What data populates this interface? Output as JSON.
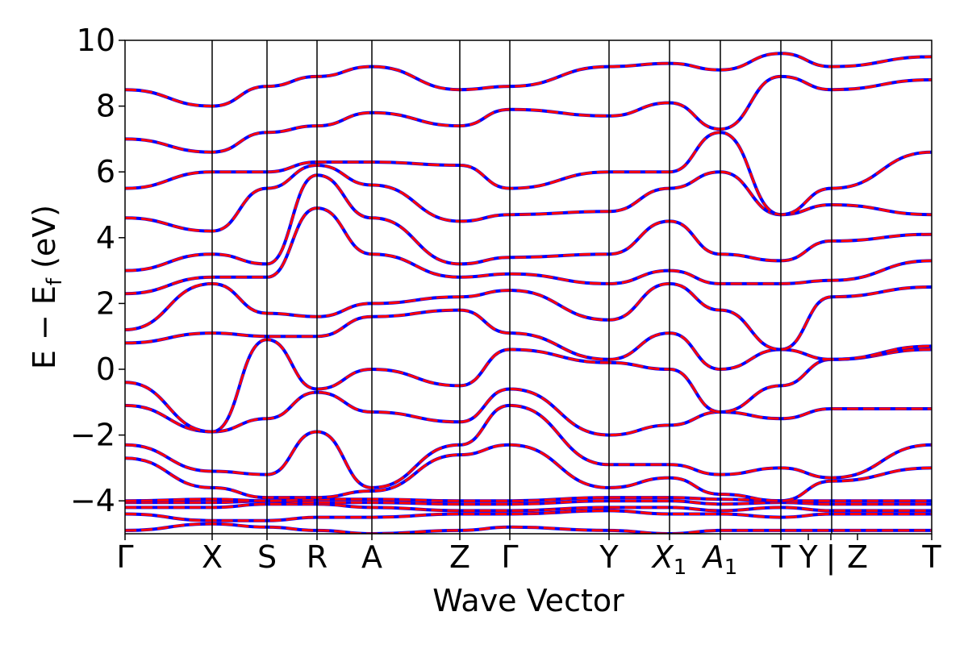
{
  "chart_data": {
    "type": "line",
    "title": "",
    "xlabel": "Wave Vector",
    "ylabel_main": "E − E",
    "ylabel_sub": "f",
    "ylabel_unit": " (eV)",
    "ylim": [
      -5,
      10
    ],
    "yticks": [
      "−4",
      "−2",
      "0",
      "2",
      "4",
      "6",
      "8",
      "10"
    ],
    "ytick_values": [
      -4,
      -2,
      0,
      2,
      4,
      6,
      8,
      10
    ],
    "xlim": [
      0,
      1
    ],
    "kpoint_labels": [
      {
        "main": "Γ",
        "sub": "",
        "x": 0.0
      },
      {
        "main": "X",
        "sub": "",
        "x": 0.108
      },
      {
        "main": "S",
        "sub": "",
        "x": 0.176
      },
      {
        "main": "R",
        "sub": "",
        "x": 0.238
      },
      {
        "main": "A",
        "sub": "",
        "x": 0.306
      },
      {
        "main": "Z",
        "sub": "",
        "x": 0.415
      },
      {
        "main": "Γ",
        "sub": "",
        "x": 0.477
      },
      {
        "main": "Y",
        "sub": "",
        "x": 0.6
      },
      {
        "main": "X",
        "sub": "1",
        "x": 0.675
      },
      {
        "main": "A",
        "sub": "1",
        "x": 0.738
      },
      {
        "main": "T",
        "sub": "",
        "x": 0.813
      },
      {
        "main": "Y",
        "sub": "",
        "x": 0.847
      },
      {
        "main": "|",
        "sub": "",
        "x": 0.875
      },
      {
        "main": "Z",
        "sub": "",
        "x": 0.908
      },
      {
        "main": "T",
        "sub": "",
        "x": 1.0
      }
    ],
    "vlines": [
      0.108,
      0.176,
      0.238,
      0.306,
      0.415,
      0.477,
      0.6,
      0.675,
      0.738,
      0.813,
      0.876
    ],
    "series_style": [
      {
        "role": "reference",
        "color": "#0000ff",
        "dashed": false
      },
      {
        "role": "overlay",
        "color": "#ff0000",
        "dashed": true
      }
    ],
    "grid": false,
    "legend": "none",
    "bands_at_nodes": {
      "x_nodes": [
        0.0,
        0.108,
        0.176,
        0.238,
        0.306,
        0.415,
        0.477,
        0.6,
        0.675,
        0.738,
        0.813,
        0.876,
        1.0
      ],
      "bands": [
        [
          -4.9,
          -4.7,
          -4.8,
          -4.9,
          -5.0,
          -4.9,
          -4.8,
          -4.9,
          -5.0,
          -4.9,
          -4.9,
          -4.9,
          -4.9
        ],
        [
          -4.4,
          -4.6,
          -4.6,
          -4.5,
          -4.5,
          -4.4,
          -4.4,
          -4.3,
          -4.4,
          -4.4,
          -4.5,
          -4.4,
          -4.4
        ],
        [
          -4.2,
          -4.2,
          -4.1,
          -4.1,
          -4.2,
          -4.3,
          -4.3,
          -4.2,
          -4.2,
          -4.3,
          -4.2,
          -4.3,
          -4.3
        ],
        [
          -4.05,
          -4.05,
          -4.0,
          -4.05,
          -4.05,
          -4.1,
          -4.1,
          -4.0,
          -4.0,
          -4.1,
          -4.05,
          -4.1,
          -4.1
        ],
        [
          -4.0,
          -3.95,
          -4.0,
          -3.95,
          -3.95,
          -4.0,
          -4.0,
          -3.9,
          -3.9,
          -3.95,
          -4.0,
          -4.0,
          -4.0
        ],
        [
          -2.7,
          -3.6,
          -3.9,
          -3.9,
          -3.7,
          -2.6,
          -2.3,
          -3.6,
          -3.3,
          -3.8,
          -4.0,
          -3.4,
          -3.0
        ],
        [
          -2.3,
          -3.1,
          -3.2,
          -1.9,
          -3.6,
          -2.3,
          -1.1,
          -2.9,
          -2.9,
          -3.2,
          -3.0,
          -3.3,
          -2.3
        ],
        [
          -1.1,
          -1.9,
          -1.5,
          -0.7,
          -1.3,
          -1.6,
          -0.6,
          -2.0,
          -1.7,
          -1.3,
          -1.5,
          -1.2,
          -1.2
        ],
        [
          -0.4,
          -1.9,
          0.9,
          -0.6,
          0.0,
          -0.5,
          0.6,
          0.2,
          0.0,
          -1.3,
          -0.5,
          0.3,
          0.6
        ],
        [
          0.8,
          1.1,
          1.0,
          1.0,
          1.6,
          1.8,
          1.1,
          0.3,
          1.1,
          0.0,
          0.6,
          0.3,
          0.7
        ],
        [
          1.2,
          2.6,
          1.7,
          1.6,
          2.0,
          2.2,
          2.4,
          1.5,
          2.6,
          1.8,
          0.6,
          2.2,
          2.5
        ],
        [
          2.3,
          2.8,
          2.8,
          4.9,
          3.5,
          2.8,
          2.9,
          2.6,
          3.0,
          2.6,
          2.6,
          2.7,
          3.3
        ],
        [
          3.0,
          3.5,
          3.2,
          5.9,
          4.6,
          3.2,
          3.4,
          3.5,
          4.5,
          3.5,
          3.3,
          3.9,
          4.1
        ],
        [
          4.6,
          4.2,
          5.5,
          6.2,
          5.6,
          4.5,
          4.7,
          4.8,
          5.5,
          6.0,
          4.7,
          5.0,
          4.7
        ],
        [
          5.5,
          6.0,
          6.0,
          6.3,
          6.3,
          6.2,
          5.5,
          6.0,
          6.0,
          7.2,
          4.7,
          5.5,
          6.6
        ],
        [
          7.0,
          6.6,
          7.2,
          7.4,
          7.8,
          7.4,
          7.9,
          7.7,
          8.1,
          7.3,
          8.9,
          8.5,
          8.8
        ],
        [
          8.5,
          8.0,
          8.6,
          8.9,
          9.2,
          8.5,
          8.6,
          9.2,
          9.3,
          9.1,
          9.6,
          9.2,
          9.5
        ]
      ]
    }
  }
}
